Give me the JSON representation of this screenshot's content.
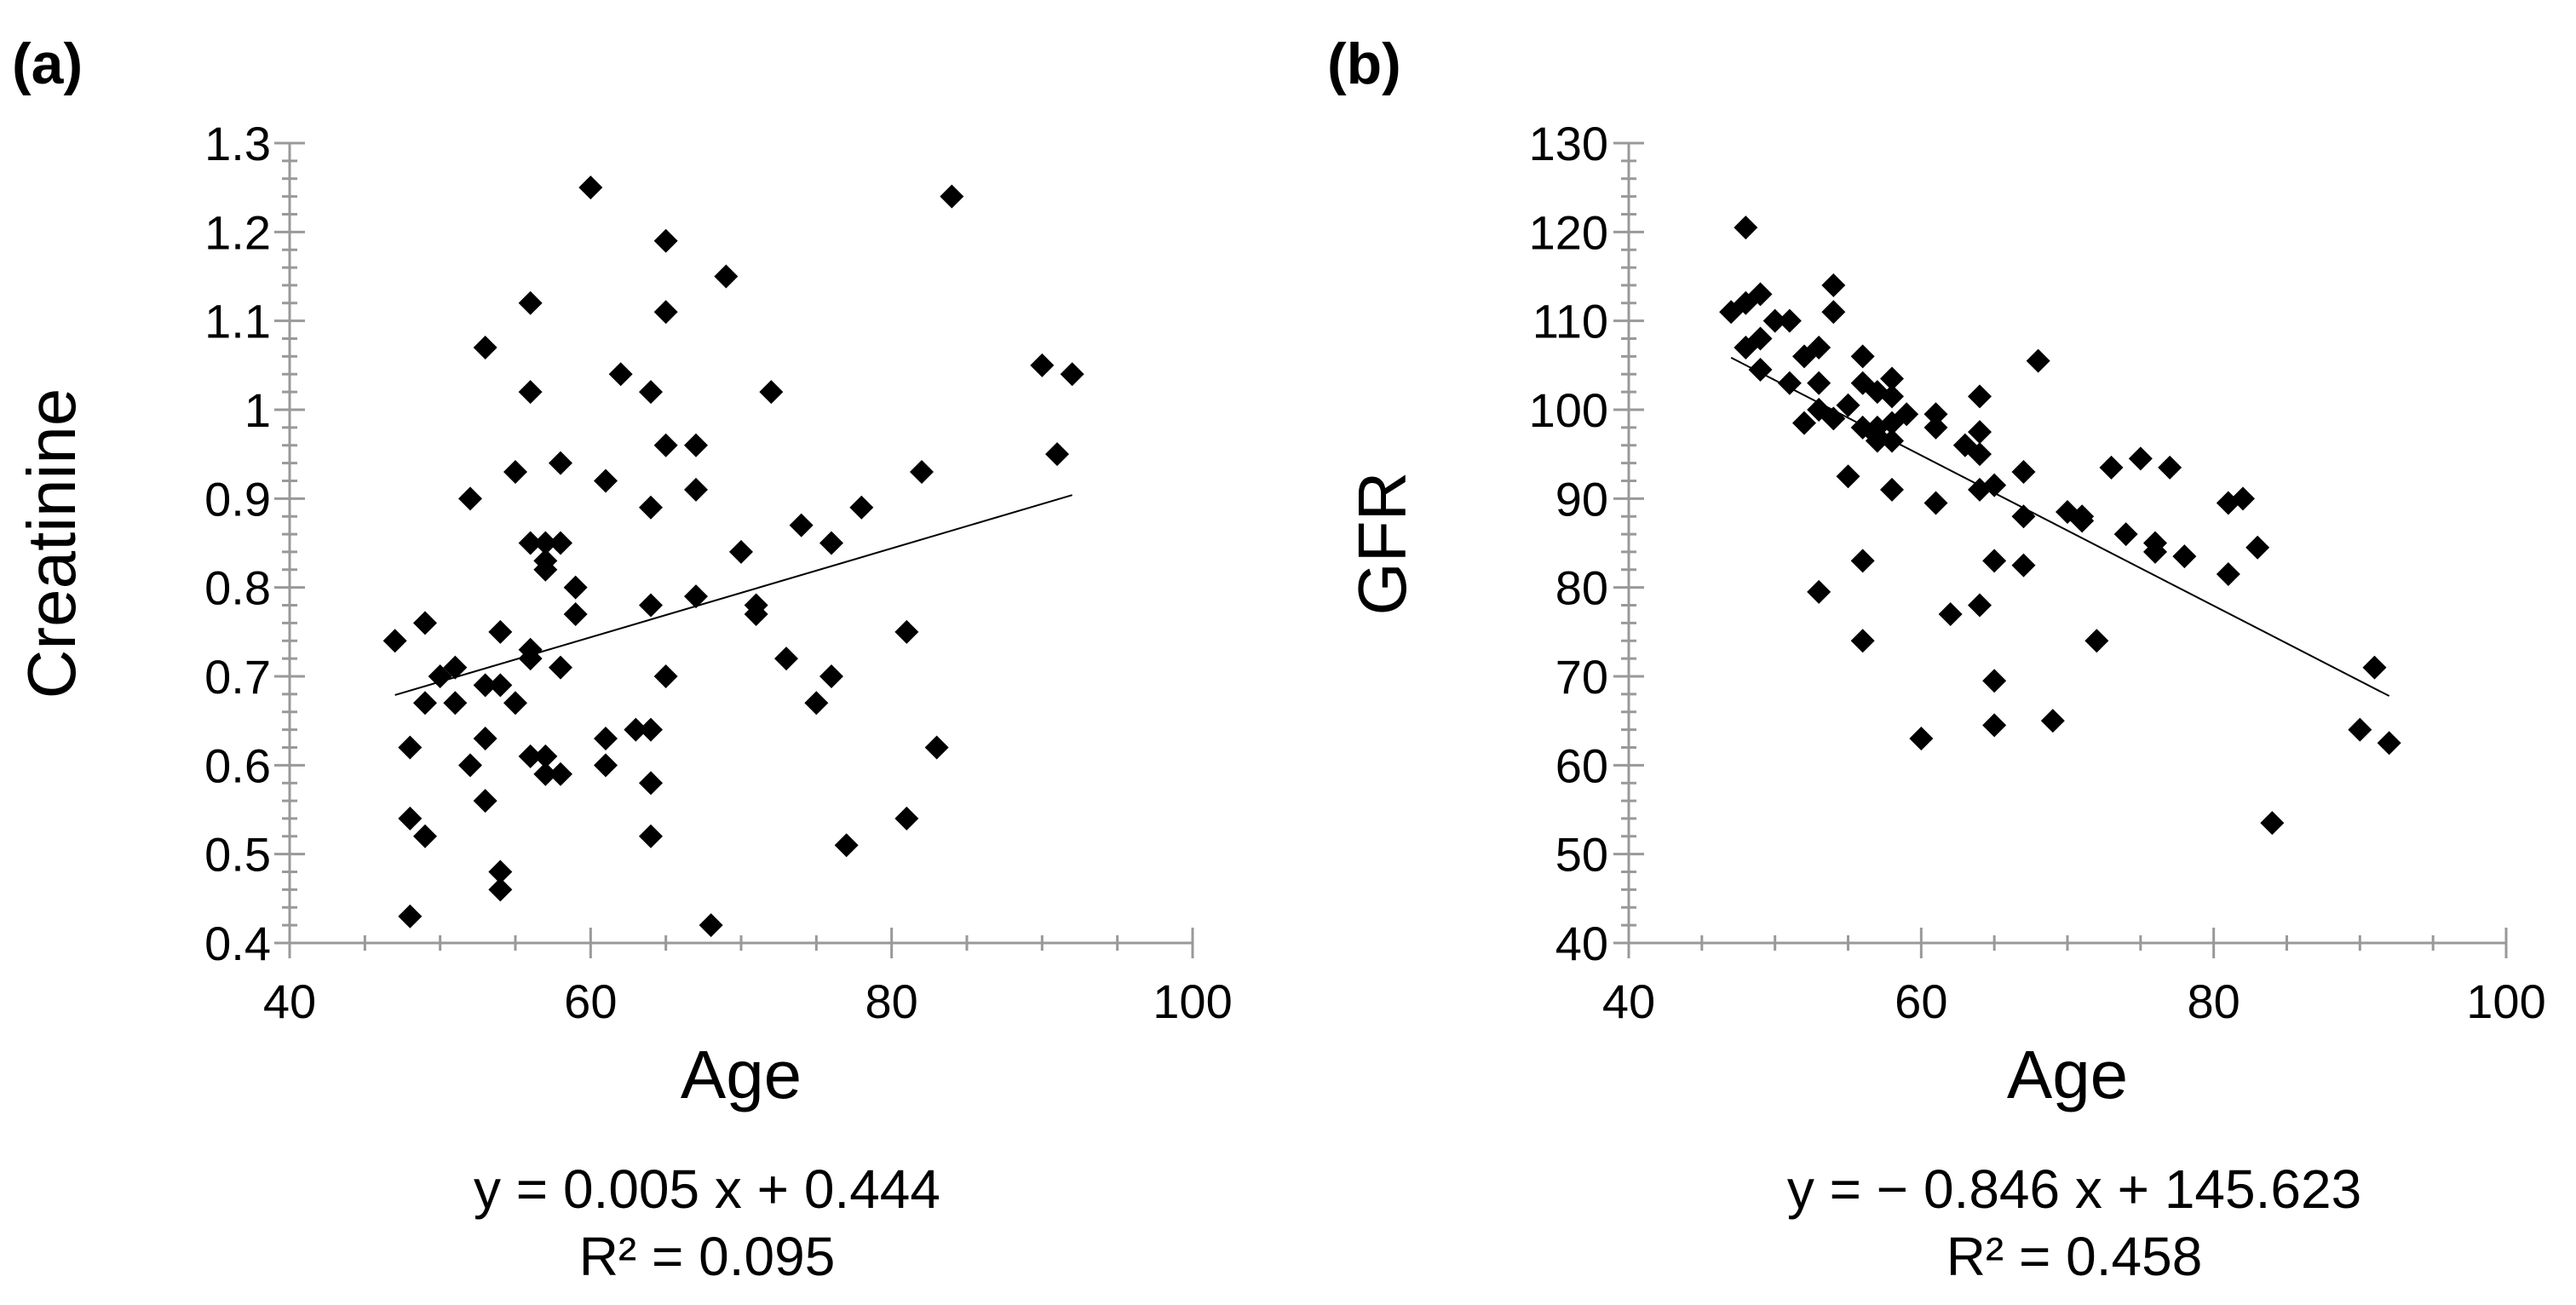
{
  "chart_data": [
    {
      "type": "scatter",
      "panel_label": "(a)",
      "title": "",
      "xlabel": "Age",
      "ylabel": "Creatinine",
      "xlim": [
        40,
        100
      ],
      "ylim": [
        0.4,
        1.3
      ],
      "xticks": [
        40,
        60,
        80,
        100
      ],
      "xtick_labels": [
        "40",
        "60",
        "80",
        "100"
      ],
      "yticks": [
        0.4,
        0.5,
        0.6,
        0.7,
        0.8,
        0.9,
        1.0,
        1.1,
        1.2,
        1.3
      ],
      "ytick_labels": [
        "0.4",
        "0.5",
        "0.6",
        "0.7",
        "0.8",
        "0.9",
        "1",
        "1.1",
        "1.2",
        "1.3"
      ],
      "grid": false,
      "marker": "diamond",
      "trendline": {
        "slope": 0.005,
        "intercept": 0.444,
        "x_range": [
          47,
          92
        ]
      },
      "equation": "y = 0.005 x + 0.444",
      "r_squared": "R² = 0.095",
      "points": [
        [
          47,
          0.74
        ],
        [
          48,
          0.62
        ],
        [
          48,
          0.54
        ],
        [
          48,
          0.43
        ],
        [
          49,
          0.76
        ],
        [
          49,
          0.67
        ],
        [
          49,
          0.52
        ],
        [
          50,
          0.7
        ],
        [
          51,
          0.71
        ],
        [
          51,
          0.67
        ],
        [
          52,
          0.9
        ],
        [
          52,
          0.6
        ],
        [
          53,
          1.07
        ],
        [
          53,
          0.69
        ],
        [
          53,
          0.63
        ],
        [
          53,
          0.56
        ],
        [
          54,
          0.75
        ],
        [
          54,
          0.69
        ],
        [
          54,
          0.48
        ],
        [
          54,
          0.46
        ],
        [
          55,
          0.93
        ],
        [
          55,
          0.67
        ],
        [
          56,
          1.12
        ],
        [
          56,
          1.02
        ],
        [
          56,
          0.85
        ],
        [
          56,
          0.73
        ],
        [
          56,
          0.72
        ],
        [
          56,
          0.61
        ],
        [
          57,
          0.85
        ],
        [
          57,
          0.83
        ],
        [
          57,
          0.82
        ],
        [
          57,
          0.61
        ],
        [
          57,
          0.59
        ],
        [
          58,
          0.94
        ],
        [
          58,
          0.85
        ],
        [
          58,
          0.71
        ],
        [
          58,
          0.59
        ],
        [
          59,
          0.8
        ],
        [
          59,
          0.77
        ],
        [
          60,
          1.25
        ],
        [
          61,
          0.92
        ],
        [
          61,
          0.63
        ],
        [
          61,
          0.6
        ],
        [
          62,
          1.04
        ],
        [
          63,
          0.64
        ],
        [
          64,
          1.02
        ],
        [
          64,
          0.89
        ],
        [
          64,
          0.78
        ],
        [
          64,
          0.64
        ],
        [
          64,
          0.58
        ],
        [
          64,
          0.52
        ],
        [
          65,
          1.19
        ],
        [
          65,
          1.11
        ],
        [
          65,
          0.96
        ],
        [
          65,
          0.7
        ],
        [
          67,
          0.96
        ],
        [
          67,
          0.91
        ],
        [
          67,
          0.79
        ],
        [
          68,
          0.42
        ],
        [
          69,
          1.15
        ],
        [
          70,
          0.84
        ],
        [
          71,
          0.78
        ],
        [
          71,
          0.77
        ],
        [
          72,
          1.02
        ],
        [
          73,
          0.72
        ],
        [
          74,
          0.87
        ],
        [
          75,
          0.67
        ],
        [
          76,
          0.85
        ],
        [
          76,
          0.7
        ],
        [
          77,
          0.51
        ],
        [
          78,
          0.89
        ],
        [
          81,
          0.75
        ],
        [
          81,
          0.54
        ],
        [
          82,
          0.93
        ],
        [
          83,
          0.62
        ],
        [
          84,
          1.24
        ],
        [
          90,
          1.05
        ],
        [
          91,
          0.95
        ],
        [
          92,
          1.04
        ]
      ]
    },
    {
      "type": "scatter",
      "panel_label": "(b)",
      "title": "",
      "xlabel": "Age",
      "ylabel": "GFR",
      "xlim": [
        40,
        100
      ],
      "ylim": [
        40,
        130
      ],
      "xticks": [
        40,
        60,
        80,
        100
      ],
      "xtick_labels": [
        "40",
        "60",
        "80",
        "100"
      ],
      "yticks": [
        40,
        50,
        60,
        70,
        80,
        90,
        100,
        110,
        120,
        130
      ],
      "ytick_labels": [
        "40",
        "50",
        "60",
        "70",
        "80",
        "90",
        "100",
        "110",
        "120",
        "130"
      ],
      "grid": false,
      "marker": "diamond",
      "trendline": {
        "slope": -0.846,
        "intercept": 145.623,
        "x_range": [
          47,
          92
        ]
      },
      "equation": "y = − 0.846 x + 145.623",
      "r_squared": "R² = 0.458",
      "points": [
        [
          47,
          111
        ],
        [
          48,
          120.5
        ],
        [
          48,
          112
        ],
        [
          48,
          107
        ],
        [
          49,
          113
        ],
        [
          49,
          108
        ],
        [
          49,
          104.5
        ],
        [
          50,
          110
        ],
        [
          51,
          110
        ],
        [
          51,
          103
        ],
        [
          52,
          106
        ],
        [
          52,
          98.5
        ],
        [
          53,
          107
        ],
        [
          53,
          103
        ],
        [
          53,
          100
        ],
        [
          53,
          79.5
        ],
        [
          54,
          114
        ],
        [
          54,
          111
        ],
        [
          54,
          99
        ],
        [
          55,
          100.5
        ],
        [
          55,
          92.5
        ],
        [
          56,
          106
        ],
        [
          56,
          103
        ],
        [
          56,
          98
        ],
        [
          56,
          83
        ],
        [
          56,
          74
        ],
        [
          57,
          102
        ],
        [
          57,
          98
        ],
        [
          57,
          97
        ],
        [
          57,
          96.5
        ],
        [
          58,
          103.5
        ],
        [
          58,
          101.5
        ],
        [
          58,
          98.5
        ],
        [
          58,
          96.5
        ],
        [
          58,
          91
        ],
        [
          59,
          99.5
        ],
        [
          60,
          63
        ],
        [
          61,
          99.5
        ],
        [
          61,
          98
        ],
        [
          61,
          89.5
        ],
        [
          62,
          77
        ],
        [
          63,
          96
        ],
        [
          64,
          101.5
        ],
        [
          64,
          97.5
        ],
        [
          64,
          95
        ],
        [
          64,
          91
        ],
        [
          64,
          78
        ],
        [
          65,
          91.5
        ],
        [
          65,
          83
        ],
        [
          65,
          69.5
        ],
        [
          65,
          64.5
        ],
        [
          67,
          93
        ],
        [
          67,
          88
        ],
        [
          67,
          82.5
        ],
        [
          68,
          105.5
        ],
        [
          69,
          65
        ],
        [
          70,
          88.5
        ],
        [
          71,
          88
        ],
        [
          71,
          87.5
        ],
        [
          72,
          74
        ],
        [
          73,
          93.5
        ],
        [
          74,
          86
        ],
        [
          75,
          94.5
        ],
        [
          76,
          85
        ],
        [
          76,
          84
        ],
        [
          77,
          93.5
        ],
        [
          78,
          83.5
        ],
        [
          81,
          89.5
        ],
        [
          81,
          81.5
        ],
        [
          82,
          90
        ],
        [
          83,
          84.5
        ],
        [
          84,
          53.5
        ],
        [
          90,
          64
        ],
        [
          91,
          71
        ],
        [
          92,
          62.5
        ]
      ]
    }
  ]
}
